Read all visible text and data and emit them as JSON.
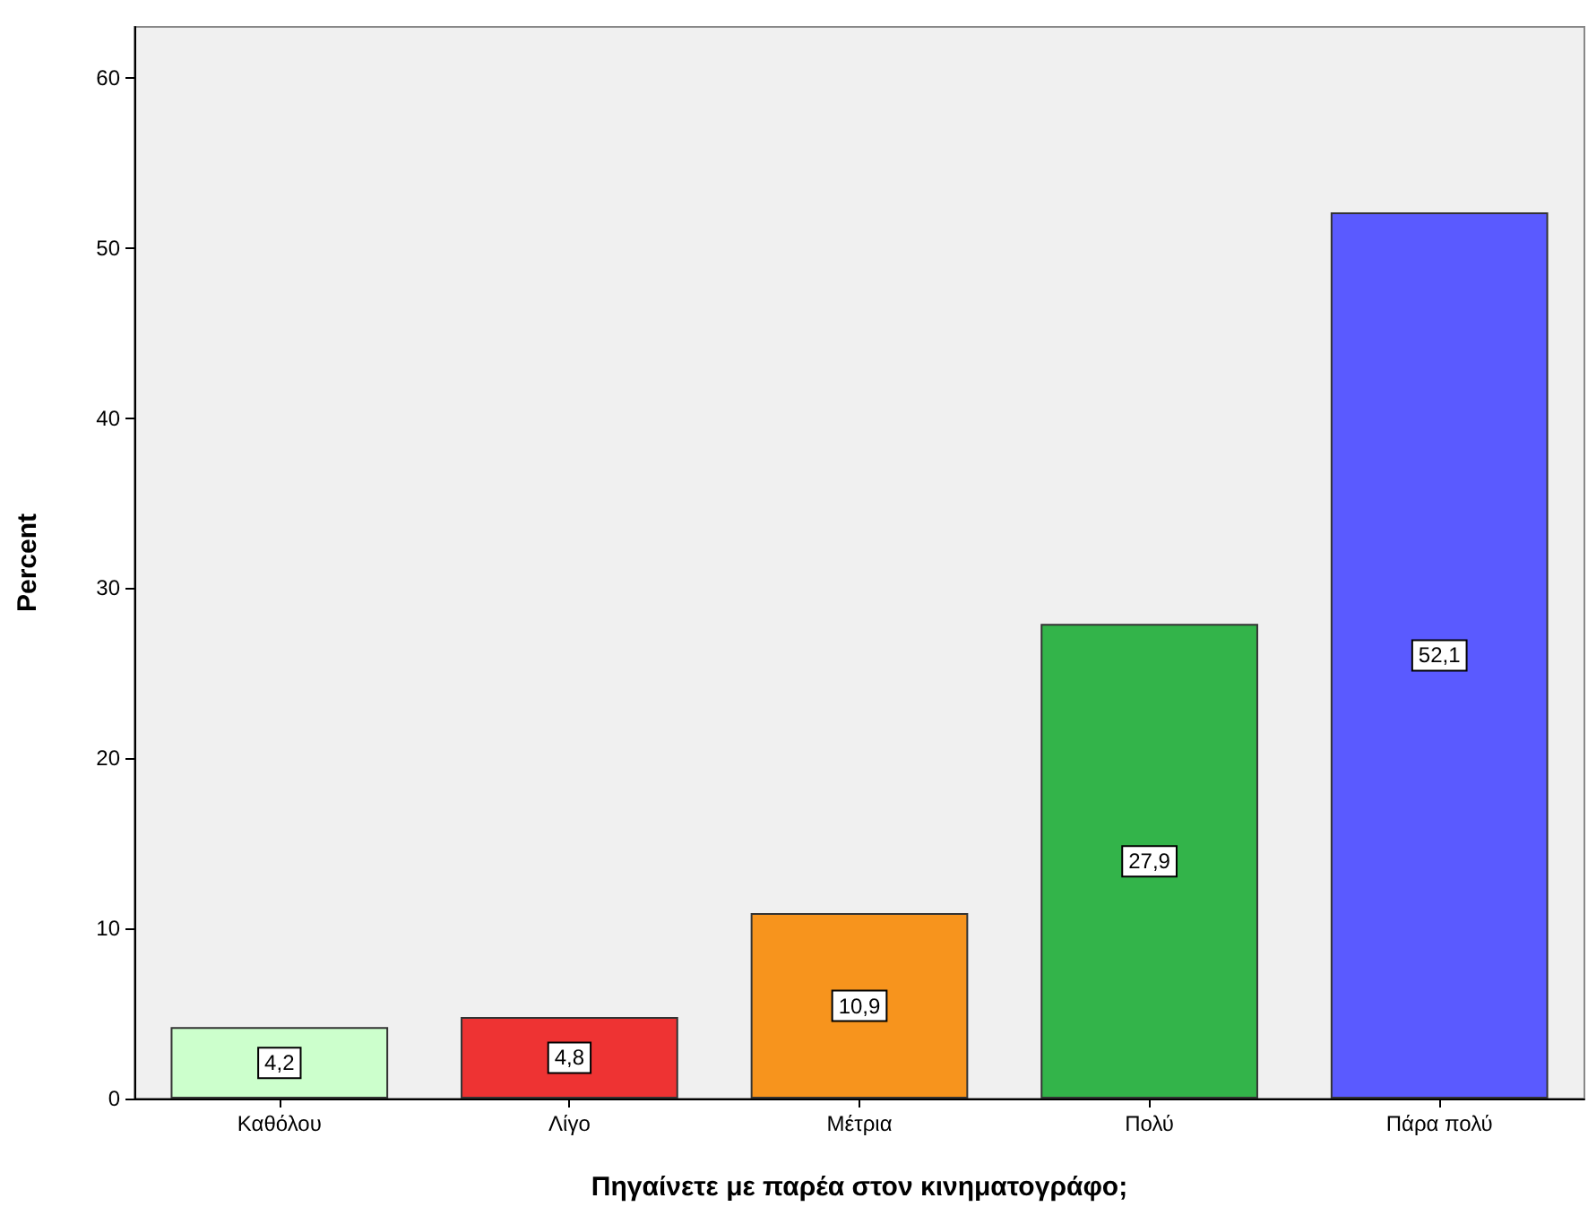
{
  "chart_data": {
    "type": "bar",
    "xlabel": "Πηγαίνετε με παρέα στον κινηματογράφο;",
    "ylabel": "Percent",
    "categories": [
      "Καθόλου",
      "Λίγο",
      "Μέτρια",
      "Πολύ",
      "Πάρα πολύ"
    ],
    "values": [
      4.2,
      4.8,
      10.9,
      27.9,
      52.1
    ],
    "colors": [
      "#ccffcc",
      "#ee3333",
      "#f7941d",
      "#33b44a",
      "#5a5aff"
    ],
    "value_labels": [
      "4,2",
      "4,8",
      "10,9",
      "27,9",
      "52,1"
    ],
    "ylim": [
      0,
      63
    ],
    "yticks": [
      0,
      10,
      20,
      30,
      40,
      50,
      60
    ],
    "grid": false
  }
}
